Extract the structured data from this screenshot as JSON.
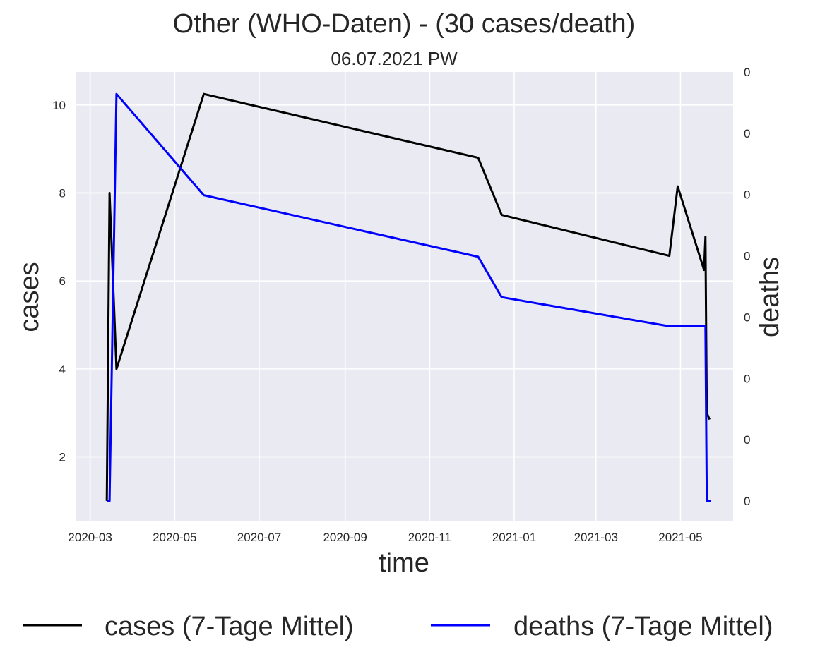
{
  "chart_data": {
    "type": "line",
    "title": "Other (WHO-Daten) - (30 cases/death)",
    "subtitle": "06.07.2021 PW",
    "xlabel": "time",
    "ylabel": "cases",
    "ylabel_right": "deaths",
    "x_ticks": [
      "2020-03",
      "2020-05",
      "2020-07",
      "2020-09",
      "2020-11",
      "2021-01",
      "2021-03",
      "2021-05"
    ],
    "y_ticks": [
      2,
      4,
      6,
      8,
      10
    ],
    "y_ticks_right": [
      "0",
      "0",
      "0",
      "0",
      "0",
      "0",
      "0",
      "0"
    ],
    "ylim": [
      0.55,
      10.75
    ],
    "grid": true,
    "legend_position": "bottom",
    "colors": {
      "plot_bg": "#eaeaf2",
      "grid": "#ffffff",
      "cases": "#000000",
      "deaths": "#0000ff",
      "right_label": "#0000ff"
    },
    "series": [
      {
        "name": "cases (7-Tage Mittel)",
        "color": "#000000",
        "points": [
          [
            "2020-03-13",
            1.0
          ],
          [
            "2020-03-15",
            8.0
          ],
          [
            "2020-03-20",
            4.0
          ],
          [
            "2020-05-22",
            10.25
          ],
          [
            "2020-12-06",
            8.8
          ],
          [
            "2020-12-23",
            7.5
          ],
          [
            "2021-04-23",
            6.57
          ],
          [
            "2021-04-29",
            8.15
          ],
          [
            "2021-05-18",
            6.25
          ],
          [
            "2021-05-19",
            7.0
          ],
          [
            "2021-05-20",
            3.0
          ],
          [
            "2021-05-22",
            2.85
          ]
        ]
      },
      {
        "name": "deaths (7-Tage Mittel)",
        "color": "#0000ff",
        "points": [
          [
            "2020-03-13",
            1.0
          ],
          [
            "2020-03-15",
            1.0
          ],
          [
            "2020-03-20",
            10.25
          ],
          [
            "2020-05-22",
            7.95
          ],
          [
            "2020-12-06",
            6.55
          ],
          [
            "2020-12-23",
            5.63
          ],
          [
            "2021-04-23",
            4.97
          ],
          [
            "2021-05-19",
            4.97
          ],
          [
            "2021-05-20",
            1.0
          ],
          [
            "2021-05-23",
            1.0
          ]
        ]
      }
    ]
  }
}
